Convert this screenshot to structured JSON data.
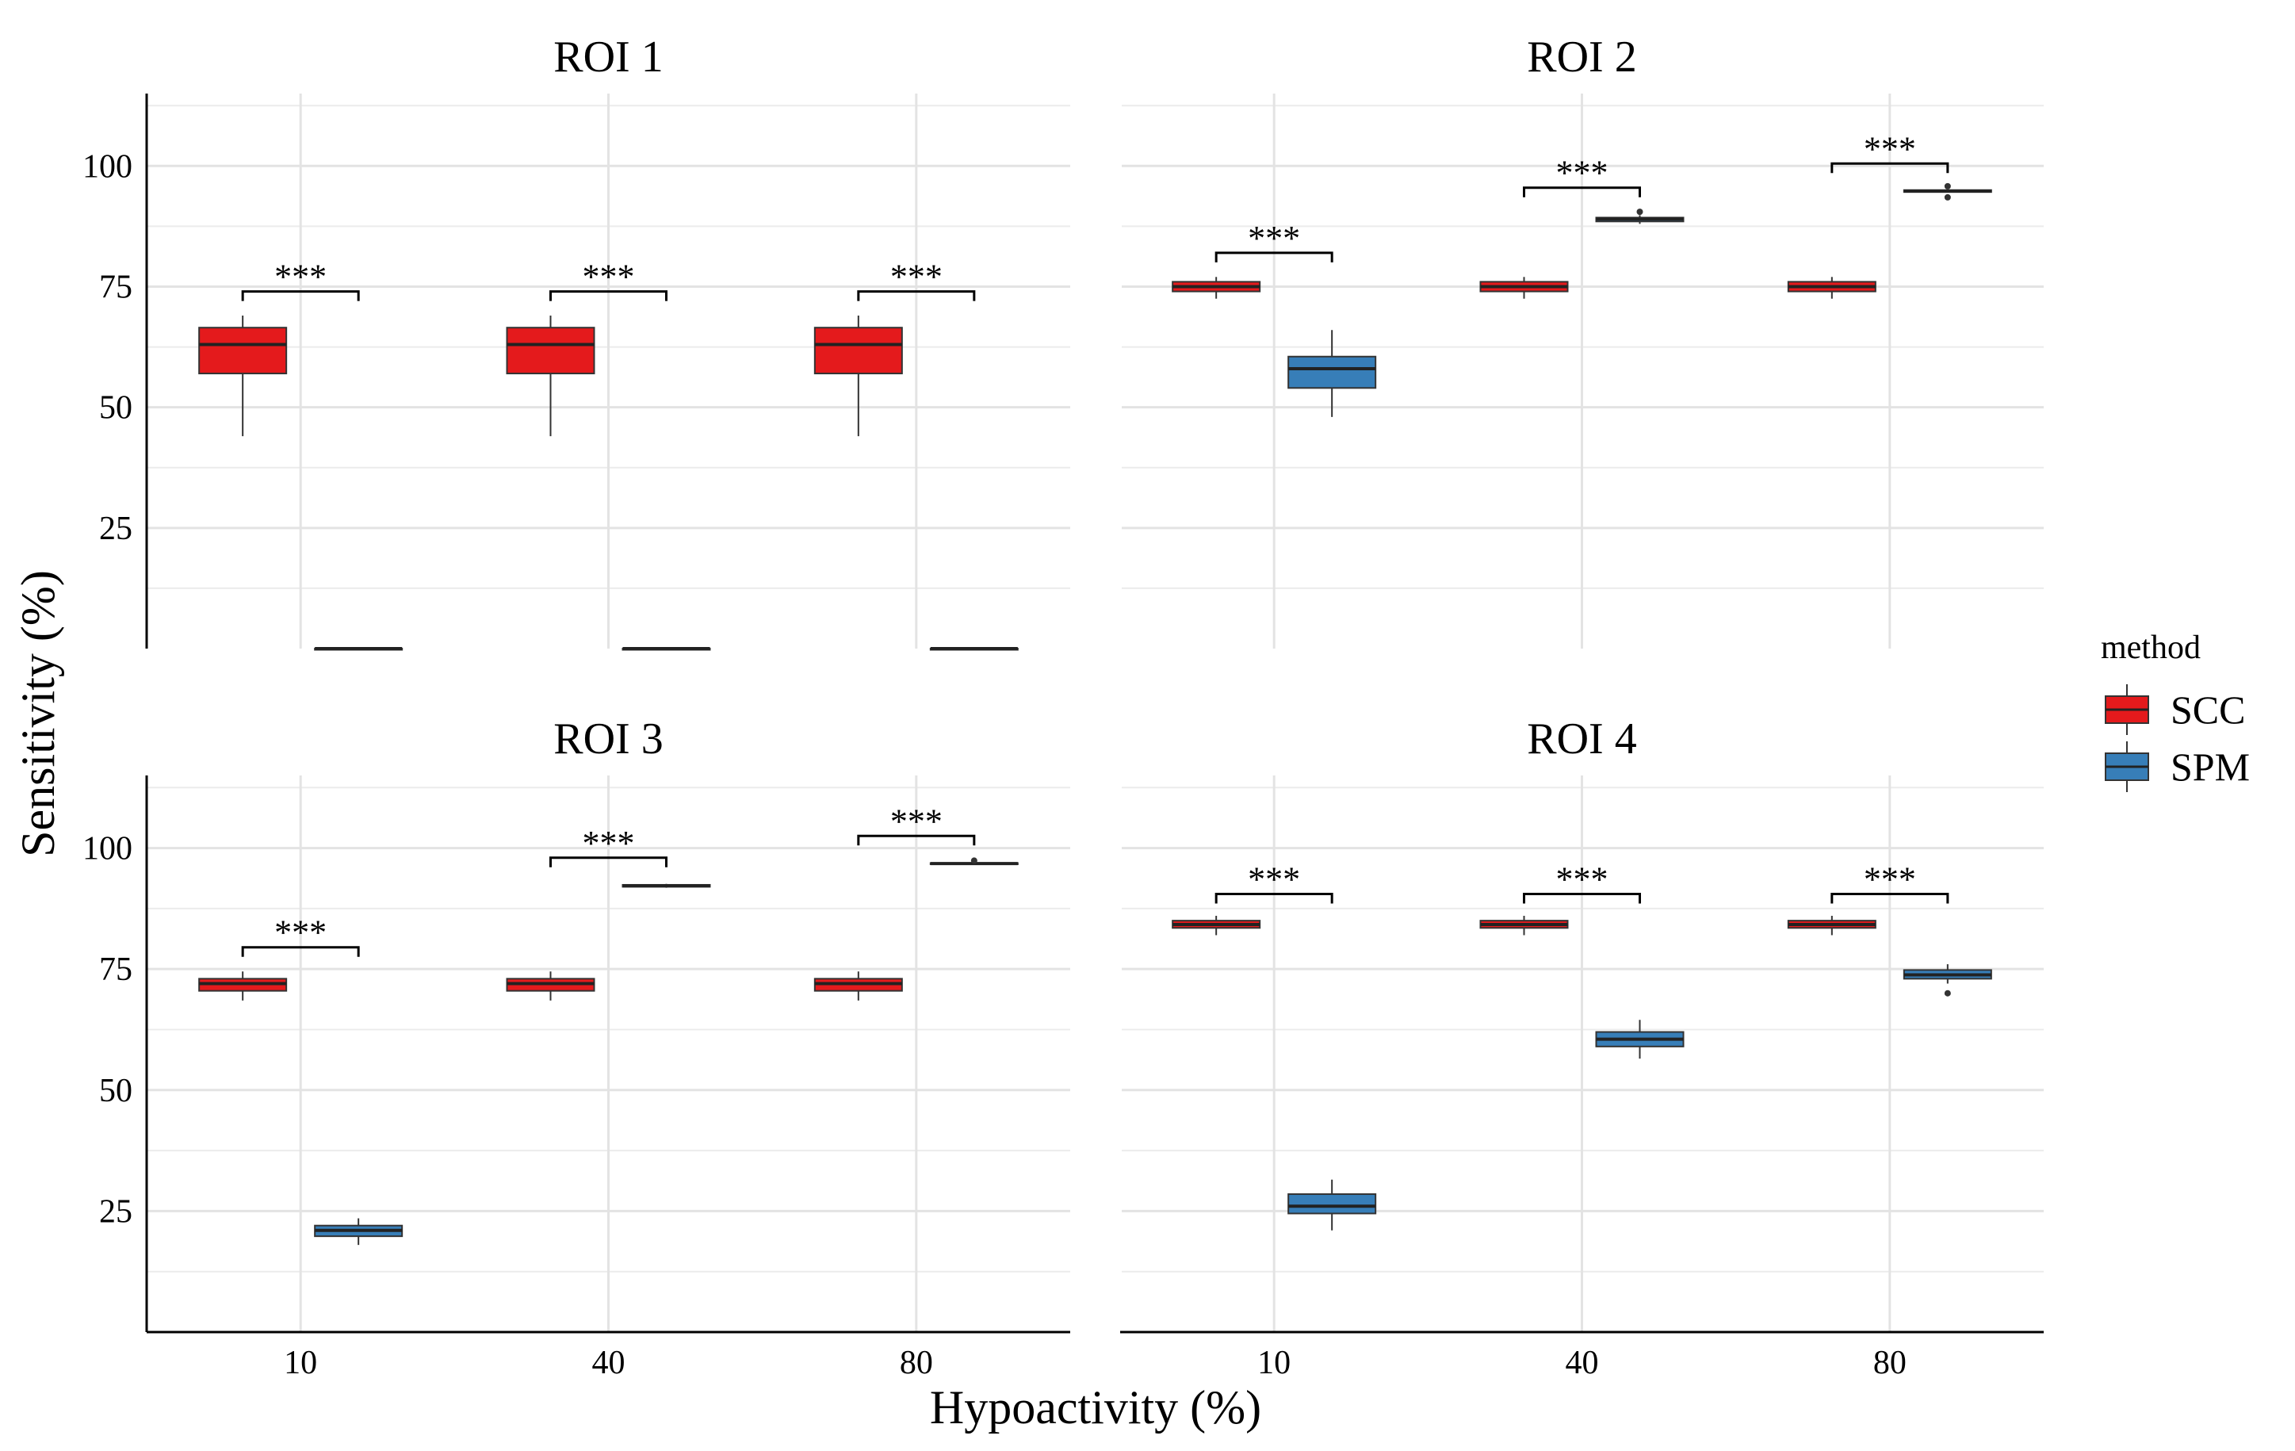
{
  "chart_data": {
    "type": "box",
    "xlabel": "Hypoactivity (%)",
    "ylabel": "Sensitivity (%)",
    "categories": [
      "10",
      "40",
      "80"
    ],
    "y_ticks": [
      25,
      50,
      75,
      100
    ],
    "ylim": [
      0,
      115
    ],
    "grid": true,
    "legend": {
      "title": "method",
      "position": "right",
      "entries": [
        {
          "name": "SCC",
          "color": "#E41A1C"
        },
        {
          "name": "SPM",
          "color": "#377EB8"
        }
      ]
    },
    "significance_label": "***",
    "panels": [
      {
        "title": "ROI 1",
        "groups": [
          {
            "x": "10",
            "SCC": {
              "min": 44,
              "q1": 57,
              "median": 63,
              "q3": 66.5,
              "max": 69,
              "outliers": []
            },
            "SPM": {
              "min": 0,
              "q1": 0,
              "median": 0,
              "q3": 0,
              "max": 0,
              "outliers": []
            },
            "bracket_y": 74
          },
          {
            "x": "40",
            "SCC": {
              "min": 44,
              "q1": 57,
              "median": 63,
              "q3": 66.5,
              "max": 69,
              "outliers": []
            },
            "SPM": {
              "min": 0,
              "q1": 0,
              "median": 0,
              "q3": 0,
              "max": 0,
              "outliers": []
            },
            "bracket_y": 74
          },
          {
            "x": "80",
            "SCC": {
              "min": 44,
              "q1": 57,
              "median": 63,
              "q3": 66.5,
              "max": 69,
              "outliers": []
            },
            "SPM": {
              "min": 0,
              "q1": 0,
              "median": 0,
              "q3": 0,
              "max": 0,
              "outliers": []
            },
            "bracket_y": 74
          }
        ]
      },
      {
        "title": "ROI 2",
        "groups": [
          {
            "x": "10",
            "SCC": {
              "min": 72.5,
              "q1": 74,
              "median": 75,
              "q3": 76,
              "max": 77,
              "outliers": []
            },
            "SPM": {
              "min": 48,
              "q1": 54,
              "median": 58,
              "q3": 60.5,
              "max": 66,
              "outliers": []
            },
            "bracket_y": 82
          },
          {
            "x": "40",
            "SCC": {
              "min": 72.5,
              "q1": 74,
              "median": 75,
              "q3": 76,
              "max": 77,
              "outliers": []
            },
            "SPM": {
              "min": 88,
              "q1": 88.5,
              "median": 89,
              "q3": 89.3,
              "max": 89.8,
              "outliers": [
                90.5
              ]
            },
            "bracket_y": 95.5
          },
          {
            "x": "80",
            "SCC": {
              "min": 72.5,
              "q1": 74,
              "median": 75,
              "q3": 76,
              "max": 77,
              "outliers": []
            },
            "SPM": {
              "min": 94.5,
              "q1": 94.6,
              "median": 94.8,
              "q3": 95,
              "max": 95.1,
              "outliers": [
                93.5,
                95.8
              ]
            },
            "bracket_y": 100.5
          }
        ]
      },
      {
        "title": "ROI 3",
        "groups": [
          {
            "x": "10",
            "SCC": {
              "min": 68.5,
              "q1": 70.5,
              "median": 72,
              "q3": 73,
              "max": 74.5,
              "outliers": []
            },
            "SPM": {
              "min": 18,
              "q1": 19.8,
              "median": 21,
              "q3": 22,
              "max": 23.5,
              "outliers": []
            },
            "bracket_y": 79.5
          },
          {
            "x": "40",
            "SCC": {
              "min": 68.5,
              "q1": 70.5,
              "median": 72,
              "q3": 73,
              "max": 74.5,
              "outliers": []
            },
            "SPM": {
              "min": 91.8,
              "q1": 92,
              "median": 92.2,
              "q3": 92.4,
              "max": 92.6,
              "outliers": []
            },
            "bracket_y": 98
          },
          {
            "x": "80",
            "SCC": {
              "min": 68.5,
              "q1": 70.5,
              "median": 72,
              "q3": 73,
              "max": 74.5,
              "outliers": []
            },
            "SPM": {
              "min": 96.6,
              "q1": 96.7,
              "median": 96.8,
              "q3": 96.9,
              "max": 97,
              "outliers": [
                97.4
              ]
            },
            "bracket_y": 102.5
          }
        ]
      },
      {
        "title": "ROI 4",
        "groups": [
          {
            "x": "10",
            "SCC": {
              "min": 82,
              "q1": 83.5,
              "median": 84.2,
              "q3": 85,
              "max": 86,
              "outliers": []
            },
            "SPM": {
              "min": 21,
              "q1": 24.5,
              "median": 26,
              "q3": 28.5,
              "max": 31.5,
              "outliers": []
            },
            "bracket_y": 90.5
          },
          {
            "x": "40",
            "SCC": {
              "min": 82,
              "q1": 83.5,
              "median": 84.2,
              "q3": 85,
              "max": 86,
              "outliers": []
            },
            "SPM": {
              "min": 56.5,
              "q1": 59,
              "median": 60.5,
              "q3": 62,
              "max": 64.5,
              "outliers": []
            },
            "bracket_y": 90.5
          },
          {
            "x": "80",
            "SCC": {
              "min": 82,
              "q1": 83.5,
              "median": 84.2,
              "q3": 85,
              "max": 86,
              "outliers": []
            },
            "SPM": {
              "min": 72,
              "q1": 73,
              "median": 73.8,
              "q3": 74.8,
              "max": 76,
              "outliers": [
                70
              ]
            },
            "bracket_y": 90.5
          }
        ]
      }
    ]
  }
}
